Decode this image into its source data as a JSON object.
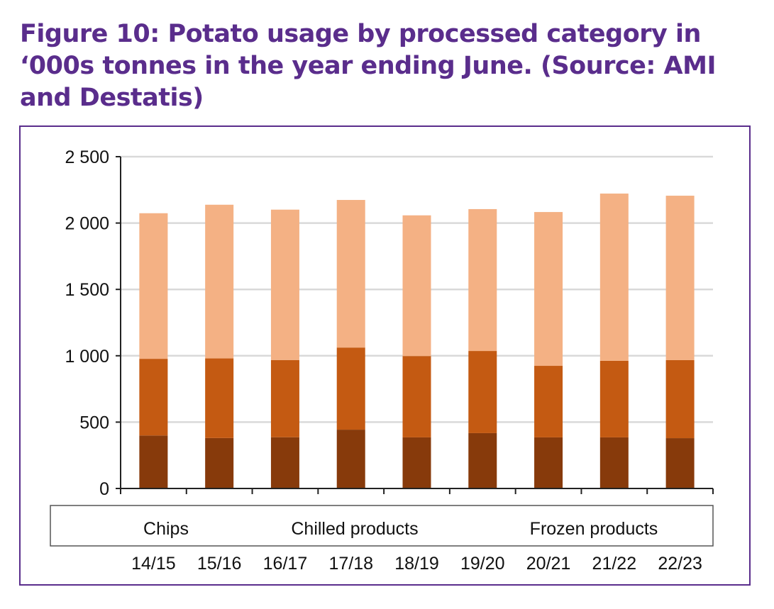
{
  "chart_data": {
    "type": "bar",
    "stacked": true,
    "title": "Figure 10: Potato usage by processed category in ‘000s tonnes in the year ending June. (Source: AMI and Destatis)",
    "xlabel": "",
    "ylabel": "",
    "categories": [
      "14/15",
      "15/16",
      "16/17",
      "17/18",
      "18/19",
      "19/20",
      "20/21",
      "21/22",
      "22/23"
    ],
    "series": [
      {
        "name": "Chips",
        "color": "#873a0b",
        "values": [
          399,
          380,
          386,
          443,
          385,
          417,
          385,
          385,
          379
        ]
      },
      {
        "name": "Chilled products",
        "color": "#c45a12",
        "values": [
          578,
          600,
          582,
          619,
          613,
          619,
          539,
          577,
          588
        ]
      },
      {
        "name": "Frozen products",
        "color": "#f4b184",
        "values": [
          1097,
          1158,
          1133,
          1112,
          1060,
          1069,
          1159,
          1260,
          1239
        ]
      }
    ],
    "ylim": [
      0,
      2500
    ],
    "yticks": [
      0,
      500,
      1000,
      1500,
      2000,
      2500
    ],
    "ytick_labels": [
      "0",
      "500",
      "1 000",
      "1 500",
      "2 000",
      "2 500"
    ],
    "grid": true,
    "legend_placement": "bottom"
  }
}
